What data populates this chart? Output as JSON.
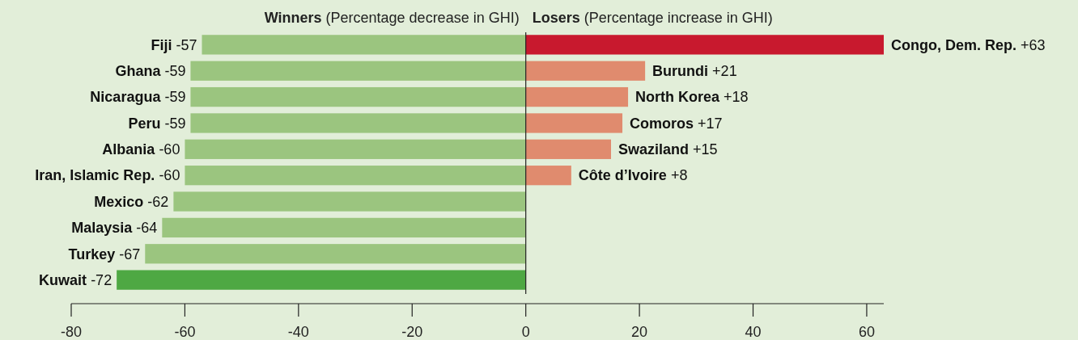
{
  "chart_data": {
    "type": "bar",
    "orientation": "horizontal",
    "categories": [
      null,
      null,
      null,
      null,
      null,
      null,
      null,
      null,
      null,
      null
    ],
    "series": [
      {
        "name": "Winners (Percentage decrease in GHI)",
        "colors": [
          "#9bc57f",
          "#9bc57f",
          "#9bc57f",
          "#9bc57f",
          "#9bc57f",
          "#9bc57f",
          "#9bc57f",
          "#9bc57f",
          "#9bc57f",
          "#4ea843"
        ],
        "values": [
          -57,
          -59,
          -59,
          -59,
          -60,
          -60,
          -62,
          -64,
          -67,
          -72
        ],
        "value_labels": [
          "Fiji -57",
          "Ghana -59",
          "Nicaragua -59",
          "Peru -59",
          "Albania -60",
          "Iran, Islamic Rep. -60",
          "Mexico -62",
          "Malaysia -64",
          "Turkey -67",
          "Kuwait -72"
        ]
      },
      {
        "name": "Losers (Percentage increase in GHI)",
        "colors": [
          "#c8192e",
          "#e08b6e",
          "#e08b6e",
          "#e08b6e",
          "#e08b6e",
          "#e08b6e",
          null,
          null,
          null,
          null
        ],
        "values": [
          63,
          21,
          18,
          17,
          15,
          8,
          null,
          null,
          null,
          null
        ],
        "value_labels": [
          "Congo, Dem. Rep. +63",
          "Burundi +21",
          "North Korea +18",
          "Comoros +17",
          "Swaziland +15",
          "Côte d’Ivoire +8",
          null,
          null,
          null,
          null
        ]
      }
    ],
    "stacked": true,
    "ref_lines": [
      {
        "axis": "x",
        "value": 0
      }
    ],
    "xlim": [
      -80,
      63
    ],
    "xticks": [
      -80,
      -60,
      -40,
      -20,
      0,
      20,
      40,
      60
    ],
    "legend": false
  }
}
